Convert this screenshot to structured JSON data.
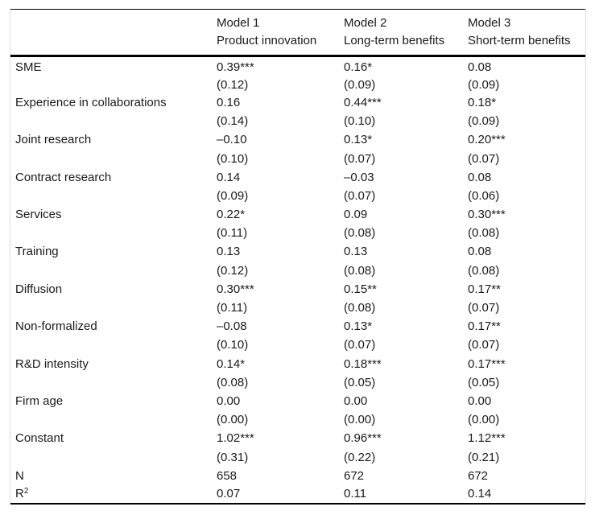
{
  "table": {
    "header": {
      "models": [
        {
          "name": "Model 1",
          "subtitle": "Product innovation"
        },
        {
          "name": "Model 2",
          "subtitle": "Long-term benefits"
        },
        {
          "name": "Model 3",
          "subtitle": "Short-term benefits"
        }
      ]
    },
    "rows": [
      {
        "label": "SME",
        "coefs": [
          "0.39***",
          "0.16*",
          "0.08"
        ],
        "ses": [
          "(0.12)",
          "(0.09)",
          "(0.09)"
        ]
      },
      {
        "label": "Experience in collaborations",
        "coefs": [
          "0.16",
          "0.44***",
          "0.18*"
        ],
        "ses": [
          "(0.14)",
          "(0.10)",
          "(0.09)"
        ]
      },
      {
        "label": "Joint research",
        "coefs": [
          "–0.10",
          "0.13*",
          "0.20***"
        ],
        "ses": [
          "(0.10)",
          "(0.07)",
          "(0.07)"
        ]
      },
      {
        "label": "Contract research",
        "coefs": [
          "0.14",
          "–0.03",
          "0.08"
        ],
        "ses": [
          "(0.09)",
          "(0.07)",
          "(0.06)"
        ]
      },
      {
        "label": "Services",
        "coefs": [
          "0.22*",
          "0.09",
          "0.30***"
        ],
        "ses": [
          "(0.11)",
          "(0.08)",
          "(0.08)"
        ]
      },
      {
        "label": "Training",
        "coefs": [
          "0.13",
          "0.13",
          "0.08"
        ],
        "ses": [
          "(0.12)",
          "(0.08)",
          "(0.08)"
        ]
      },
      {
        "label": "Diffusion",
        "coefs": [
          "0.30***",
          "0.15**",
          "0.17**"
        ],
        "ses": [
          "(0.11)",
          "(0.08)",
          "(0.07)"
        ]
      },
      {
        "label": "Non-formalized",
        "coefs": [
          "–0.08",
          "0.13*",
          "0.17**"
        ],
        "ses": [
          "(0.10)",
          "(0.07)",
          "(0.07)"
        ]
      },
      {
        "label": "R&D intensity",
        "coefs": [
          "0.14*",
          "0.18***",
          "0.17***"
        ],
        "ses": [
          "(0.08)",
          "(0.05)",
          "(0.05)"
        ]
      },
      {
        "label": "Firm age",
        "coefs": [
          "0.00",
          "0.00",
          "0.00"
        ],
        "ses": [
          "(0.00)",
          "(0.00)",
          "(0.00)"
        ]
      },
      {
        "label": "Constant",
        "coefs": [
          "1.02***",
          "0.96***",
          "1.12***"
        ],
        "ses": [
          "(0.31)",
          "(0.22)",
          "(0.21)"
        ]
      }
    ],
    "stats": [
      {
        "label": "N",
        "values": [
          "658",
          "672",
          "672"
        ]
      },
      {
        "label_base": "R",
        "label_sup": "2",
        "values": [
          "0.07",
          "0.11",
          "0.14"
        ]
      }
    ]
  }
}
